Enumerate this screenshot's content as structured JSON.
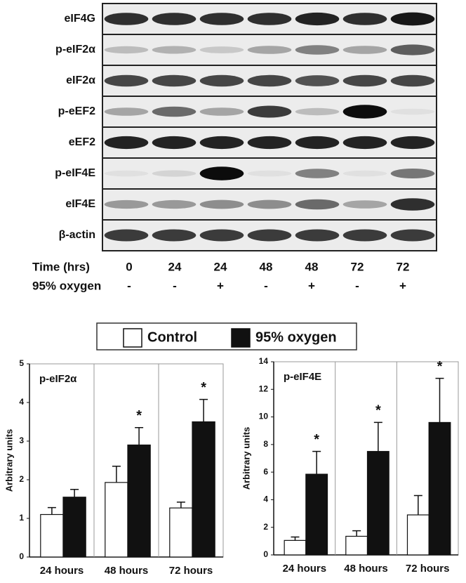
{
  "blot": {
    "proteins": [
      "eIF4G",
      "p-eIF2α",
      "eIF2α",
      "p-eEF2",
      "eEF2",
      "p-eIF4E",
      "eIF4E",
      "β-actin"
    ],
    "time_label": "Time (hrs)",
    "times": [
      "0",
      "24",
      "24",
      "48",
      "48",
      "72",
      "72"
    ],
    "oxygen_label": "95% oxygen",
    "oxygen": [
      "-",
      "-",
      "+",
      "-",
      "+",
      "-",
      "+"
    ]
  },
  "chart_data": [
    {
      "type": "bar",
      "title": "p-eIF2α",
      "y_label": "Arbitrary units",
      "categories": [
        "24 hours",
        "48 hours",
        "72 hours"
      ],
      "series": [
        {
          "name": "Control",
          "color": "#ffffff",
          "values": [
            1.1,
            1.93,
            1.27
          ],
          "errors": [
            0.18,
            0.42,
            0.15
          ],
          "significance": [
            null,
            null,
            null
          ]
        },
        {
          "name": "95% oxygen",
          "color": "#111111",
          "values": [
            1.55,
            2.9,
            3.5
          ],
          "errors": [
            0.2,
            0.45,
            0.58
          ],
          "significance": [
            null,
            "*",
            "*"
          ]
        }
      ],
      "ylim": [
        0,
        5
      ],
      "yticks": [
        0,
        1,
        2,
        3,
        4,
        5
      ],
      "grid": "vertical"
    },
    {
      "type": "bar",
      "title": "p-eIF4E",
      "y_label": "Arbitrary units",
      "categories": [
        "24 hours",
        "48 hours",
        "72 hours"
      ],
      "series": [
        {
          "name": "Control",
          "color": "#ffffff",
          "values": [
            1.05,
            1.35,
            2.9
          ],
          "errors": [
            0.25,
            0.4,
            1.4
          ],
          "significance": [
            null,
            null,
            null
          ]
        },
        {
          "name": "95% oxygen",
          "color": "#111111",
          "values": [
            5.85,
            7.5,
            9.6
          ],
          "errors": [
            1.65,
            2.1,
            3.2
          ],
          "significance": [
            "*",
            "*",
            "*"
          ]
        }
      ],
      "ylim": [
        0,
        14
      ],
      "yticks": [
        0,
        2,
        4,
        6,
        8,
        10,
        12,
        14
      ],
      "grid": "vertical"
    }
  ]
}
